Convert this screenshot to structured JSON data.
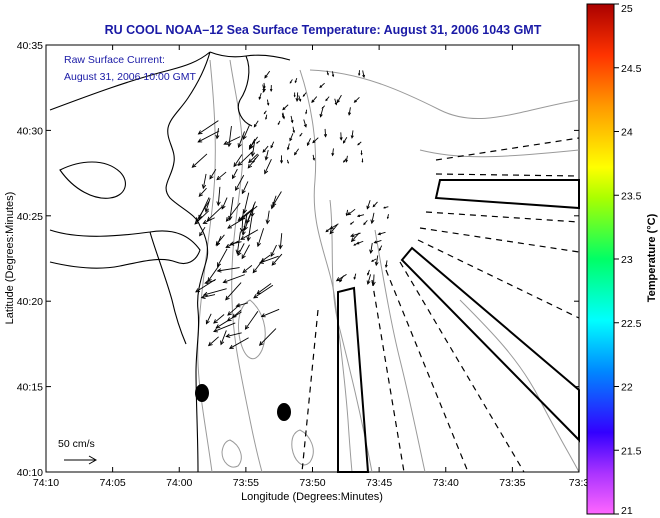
{
  "title": "RU COOL  NOAA–12  Sea Surface Temperature:  August 31, 2006 1043 GMT",
  "inset": {
    "line1": "Raw Surface Current:",
    "line2": "August 31, 2006 10:00 GMT"
  },
  "scale_label": "50 cm/s",
  "axes": {
    "xlabel": "Longitude (Degrees:Minutes)",
    "ylabel": "Latitude (Degrees:Minutes)",
    "xticks": [
      "74:10",
      "74:05",
      "74:00",
      "73:55",
      "73:50",
      "73:45",
      "73:40",
      "73:35",
      "73:3"
    ],
    "yticks": [
      "40:35",
      "40:30",
      "40:25",
      "40:20",
      "40:15",
      "40:10"
    ]
  },
  "colorbar": {
    "label": "Temperature (°C)",
    "ticks": [
      "25",
      "24.5",
      "24",
      "23.5",
      "23",
      "22.5",
      "22",
      "21.5",
      "21"
    ],
    "min": 21,
    "max": 25
  },
  "colors": {
    "title": "#1a1aa6",
    "coastline": "#000000",
    "bathymetry": "#9a9a9a"
  }
}
